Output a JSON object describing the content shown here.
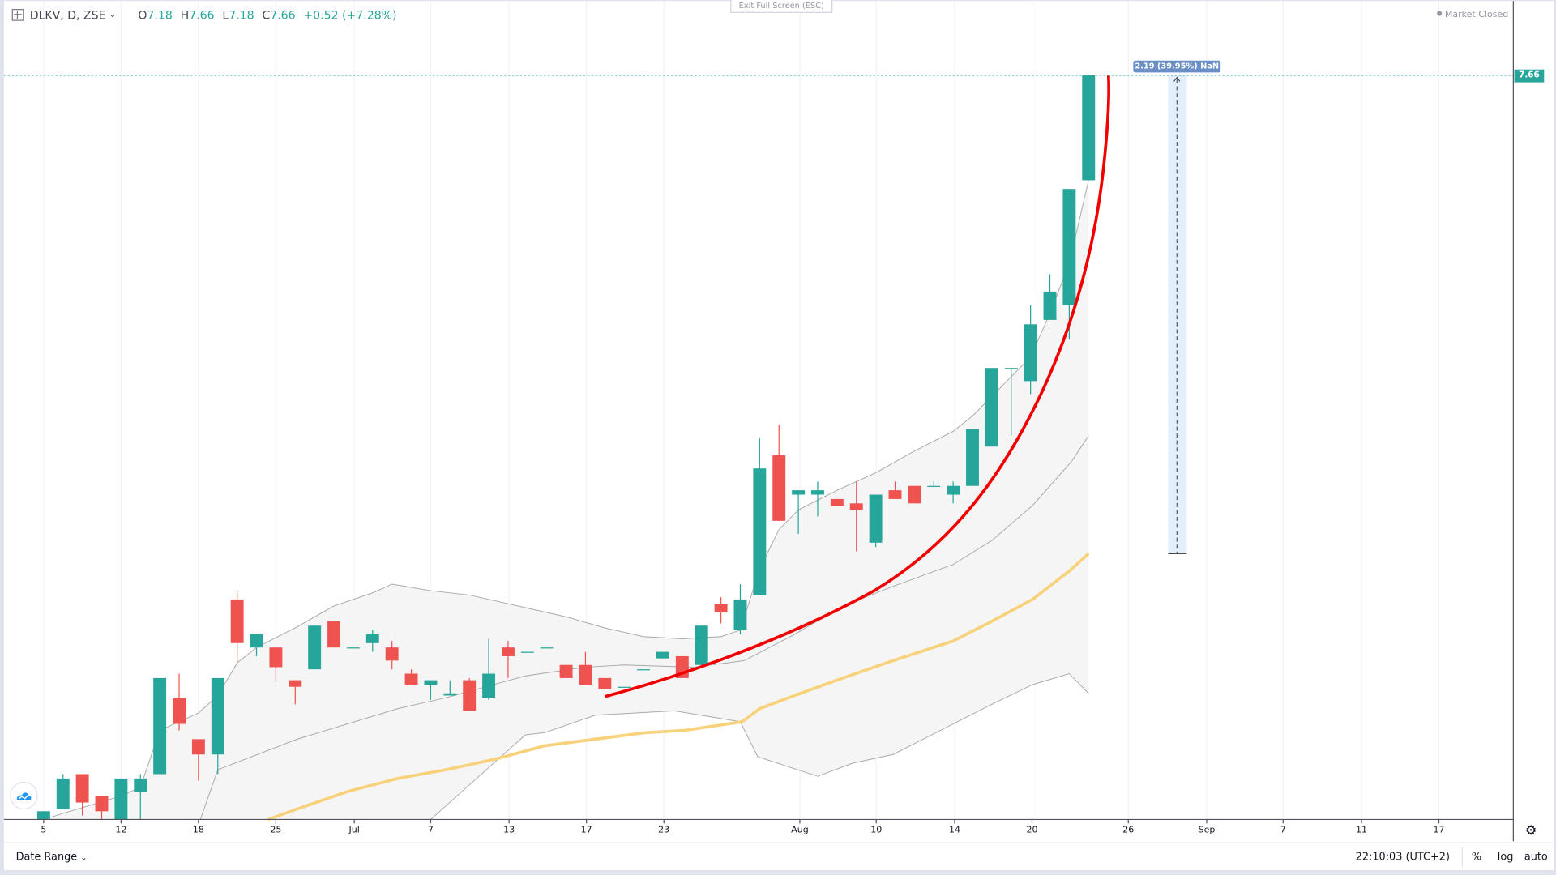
{
  "header": {
    "symbol": "DLKV, D, ZSE",
    "open_label": "O",
    "open": "7.18",
    "high_label": "H",
    "high": "7.66",
    "low_label": "L",
    "low": "7.18",
    "close_label": "C",
    "close": "7.66",
    "change": "+0.52 (+7.28%)",
    "exit_fullscreen": "Exit Full Screen (ESC)",
    "market_status": "Market Closed"
  },
  "price_axis": {
    "last_price_label": "7.66"
  },
  "measure": {
    "label": "2.19 (39.95%) NaN",
    "from_price": 5.47,
    "to_price": 7.66
  },
  "time_axis": {
    "labels": [
      "5",
      "12",
      "18",
      "25",
      "Jul",
      "7",
      "13",
      "17",
      "23",
      "Aug",
      "10",
      "14",
      "20",
      "26",
      "Sep",
      "7",
      "11",
      "17"
    ]
  },
  "bottom_bar": {
    "date_range": "Date Range",
    "clock": "22:10:03 (UTC+2)",
    "percent": "%",
    "log": "log",
    "auto": "auto"
  },
  "colors": {
    "up": "#26a69a",
    "down": "#ef5350",
    "ma": "#f7d27a",
    "band": "#9e9e9e",
    "trendline": "#ff0000",
    "measure": "#6a8fc7"
  },
  "chart_data": {
    "type": "candlestick",
    "title": "DLKV, D, ZSE",
    "ylim": [
      4.25,
      7.72
    ],
    "ohlc": [
      [
        4.25,
        4.29,
        4.25,
        4.29
      ],
      [
        4.3,
        4.46,
        4.3,
        4.44
      ],
      [
        4.46,
        4.46,
        4.27,
        4.33
      ],
      [
        4.36,
        4.36,
        4.25,
        4.29
      ],
      [
        4.25,
        4.44,
        4.25,
        4.44
      ],
      [
        4.38,
        4.46,
        4.25,
        4.44
      ],
      [
        4.46,
        4.9,
        4.46,
        4.9
      ],
      [
        4.81,
        4.92,
        4.66,
        4.69
      ],
      [
        4.62,
        4.62,
        4.43,
        4.55
      ],
      [
        4.55,
        4.9,
        4.46,
        4.9
      ],
      [
        5.26,
        5.3,
        4.97,
        5.06
      ],
      [
        5.04,
        5.1,
        5.0,
        5.1
      ],
      [
        5.04,
        5.04,
        4.88,
        4.95
      ],
      [
        4.89,
        4.89,
        4.78,
        4.86
      ],
      [
        4.94,
        5.14,
        4.94,
        5.14
      ],
      [
        5.16,
        5.16,
        5.04,
        5.04
      ],
      [
        5.04,
        5.04,
        5.04,
        5.04
      ],
      [
        5.06,
        5.12,
        5.02,
        5.1
      ],
      [
        5.04,
        5.07,
        4.94,
        4.98
      ],
      [
        4.92,
        4.94,
        4.87,
        4.87
      ],
      [
        4.87,
        4.89,
        4.8,
        4.89
      ],
      [
        4.82,
        4.89,
        4.82,
        4.83
      ],
      [
        4.89,
        4.9,
        4.75,
        4.75
      ],
      [
        4.81,
        5.08,
        4.8,
        4.92
      ],
      [
        5.04,
        5.07,
        4.9,
        5.0
      ],
      [
        5.02,
        5.02,
        5.02,
        5.02
      ],
      [
        5.04,
        5.04,
        5.04,
        5.04
      ],
      [
        4.96,
        4.96,
        4.9,
        4.9
      ],
      [
        4.96,
        5.02,
        4.87,
        4.87
      ],
      [
        4.9,
        4.9,
        4.85,
        4.85
      ],
      [
        4.86,
        4.86,
        4.86,
        4.86
      ],
      [
        4.94,
        4.94,
        4.94,
        4.94
      ],
      [
        4.99,
        5.02,
        4.99,
        5.02
      ],
      [
        5.0,
        5.0,
        4.9,
        4.9
      ],
      [
        4.96,
        5.14,
        4.96,
        5.14
      ],
      [
        5.24,
        5.27,
        5.15,
        5.2
      ],
      [
        5.12,
        5.33,
        5.1,
        5.26
      ],
      [
        5.28,
        6.0,
        5.28,
        5.86
      ],
      [
        5.92,
        6.06,
        5.62,
        5.62
      ],
      [
        5.74,
        5.76,
        5.56,
        5.76
      ],
      [
        5.74,
        5.8,
        5.64,
        5.76
      ],
      [
        5.72,
        5.72,
        5.69,
        5.69
      ],
      [
        5.7,
        5.8,
        5.48,
        5.67
      ],
      [
        5.52,
        5.74,
        5.5,
        5.74
      ],
      [
        5.76,
        5.8,
        5.72,
        5.72
      ],
      [
        5.78,
        5.78,
        5.7,
        5.7
      ],
      [
        5.78,
        5.8,
        5.78,
        5.78
      ],
      [
        5.74,
        5.8,
        5.7,
        5.78
      ],
      [
        5.78,
        6.04,
        5.78,
        6.04
      ],
      [
        5.96,
        6.32,
        5.96,
        6.32
      ],
      [
        6.32,
        6.32,
        6.01,
        6.32
      ],
      [
        6.26,
        6.61,
        6.2,
        6.52
      ],
      [
        6.54,
        6.75,
        6.54,
        6.67
      ],
      [
        6.61,
        7.14,
        6.45,
        7.14
      ],
      [
        7.18,
        7.66,
        7.18,
        7.66
      ]
    ],
    "bb_upper": [
      [
        0,
        4.25
      ],
      [
        1,
        4.28
      ],
      [
        4,
        4.36
      ],
      [
        5,
        4.4
      ],
      [
        6,
        4.66
      ],
      [
        8,
        4.74
      ],
      [
        9,
        4.82
      ],
      [
        10,
        4.97
      ],
      [
        11,
        5.04
      ],
      [
        13,
        5.13
      ],
      [
        15,
        5.23
      ],
      [
        17,
        5.29
      ],
      [
        18,
        5.33
      ],
      [
        20,
        5.3
      ],
      [
        22,
        5.28
      ],
      [
        25,
        5.22
      ],
      [
        27,
        5.18
      ],
      [
        29,
        5.13
      ],
      [
        31,
        5.09
      ],
      [
        33,
        5.08
      ],
      [
        35,
        5.09
      ],
      [
        36,
        5.12
      ],
      [
        37,
        5.4
      ],
      [
        38,
        5.58
      ],
      [
        39,
        5.67
      ],
      [
        41,
        5.76
      ],
      [
        43,
        5.84
      ],
      [
        45,
        5.94
      ],
      [
        47,
        6.03
      ],
      [
        48,
        6.1
      ],
      [
        49,
        6.19
      ],
      [
        51,
        6.37
      ],
      [
        52,
        6.57
      ],
      [
        53,
        6.8
      ],
      [
        54,
        7.18
      ]
    ],
    "bb_middle": [
      [
        8.1,
        4.25
      ],
      [
        9,
        4.48
      ],
      [
        13.1,
        4.62
      ],
      [
        18.3,
        4.76
      ],
      [
        20.8,
        4.81
      ],
      [
        24.9,
        4.91
      ],
      [
        28,
        4.95
      ],
      [
        30,
        4.96
      ],
      [
        33.6,
        4.95
      ],
      [
        36.2,
        4.98
      ],
      [
        38.8,
        5.1
      ],
      [
        41.3,
        5.23
      ],
      [
        43.9,
        5.32
      ],
      [
        47,
        5.42
      ],
      [
        49,
        5.53
      ],
      [
        51.1,
        5.69
      ],
      [
        53.1,
        5.89
      ],
      [
        54,
        6.01
      ]
    ],
    "bb_lower": [
      [
        20,
        4.25
      ],
      [
        24.9,
        4.64
      ],
      [
        25.9,
        4.65
      ],
      [
        28.5,
        4.73
      ],
      [
        32.6,
        4.75
      ],
      [
        36,
        4.7
      ],
      [
        36.9,
        4.54
      ],
      [
        40,
        4.45
      ],
      [
        41.8,
        4.51
      ],
      [
        43.9,
        4.55
      ],
      [
        47,
        4.69
      ],
      [
        49,
        4.78
      ],
      [
        51.1,
        4.87
      ],
      [
        53,
        4.92
      ],
      [
        54,
        4.83
      ]
    ],
    "ma": [
      [
        11.6,
        4.25
      ],
      [
        13.1,
        4.3
      ],
      [
        15.7,
        4.38
      ],
      [
        18.3,
        4.44
      ],
      [
        20.8,
        4.48
      ],
      [
        23.4,
        4.53
      ],
      [
        25.9,
        4.59
      ],
      [
        28.5,
        4.62
      ],
      [
        31.1,
        4.65
      ],
      [
        33.1,
        4.66
      ],
      [
        36.1,
        4.7
      ],
      [
        37,
        4.76
      ],
      [
        38.8,
        4.82
      ],
      [
        41.3,
        4.9
      ],
      [
        43.9,
        4.98
      ],
      [
        47,
        5.07
      ],
      [
        49,
        5.16
      ],
      [
        51.1,
        5.26
      ],
      [
        53,
        5.39
      ],
      [
        54,
        5.47
      ]
    ]
  }
}
